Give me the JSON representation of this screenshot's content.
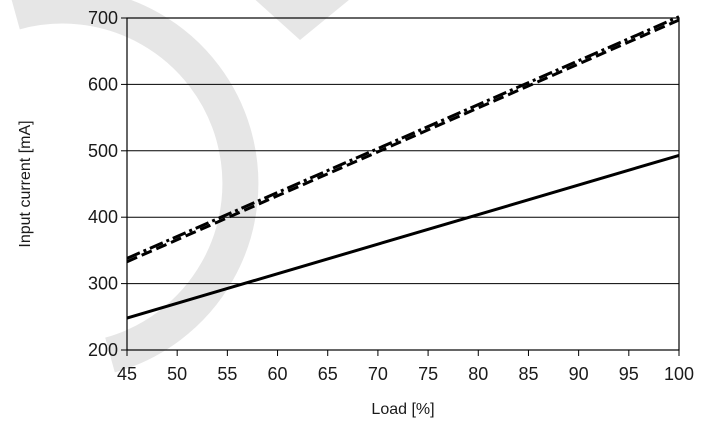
{
  "chart_data": {
    "type": "line",
    "xlabel": "Load [%]",
    "ylabel": "Input current [mA]",
    "xlim": [
      45,
      100
    ],
    "ylim": [
      200,
      700
    ],
    "xticks": [
      45,
      50,
      55,
      60,
      65,
      70,
      75,
      80,
      85,
      90,
      95,
      100
    ],
    "yticks": [
      200,
      300,
      400,
      500,
      600,
      700
    ],
    "grid": "horizontal",
    "series": [
      {
        "style": "dash-dot",
        "color": "#000000",
        "x": [
          45,
          100
        ],
        "y": [
          338,
          702
        ]
      },
      {
        "style": "dashed",
        "color": "#000000",
        "x": [
          45,
          100
        ],
        "y": [
          333,
          697
        ]
      },
      {
        "style": "solid",
        "color": "#000000",
        "x": [
          45,
          100
        ],
        "y": [
          248,
          493
        ]
      }
    ]
  },
  "decoration": {
    "watermark_color": "#e6e6e6"
  }
}
